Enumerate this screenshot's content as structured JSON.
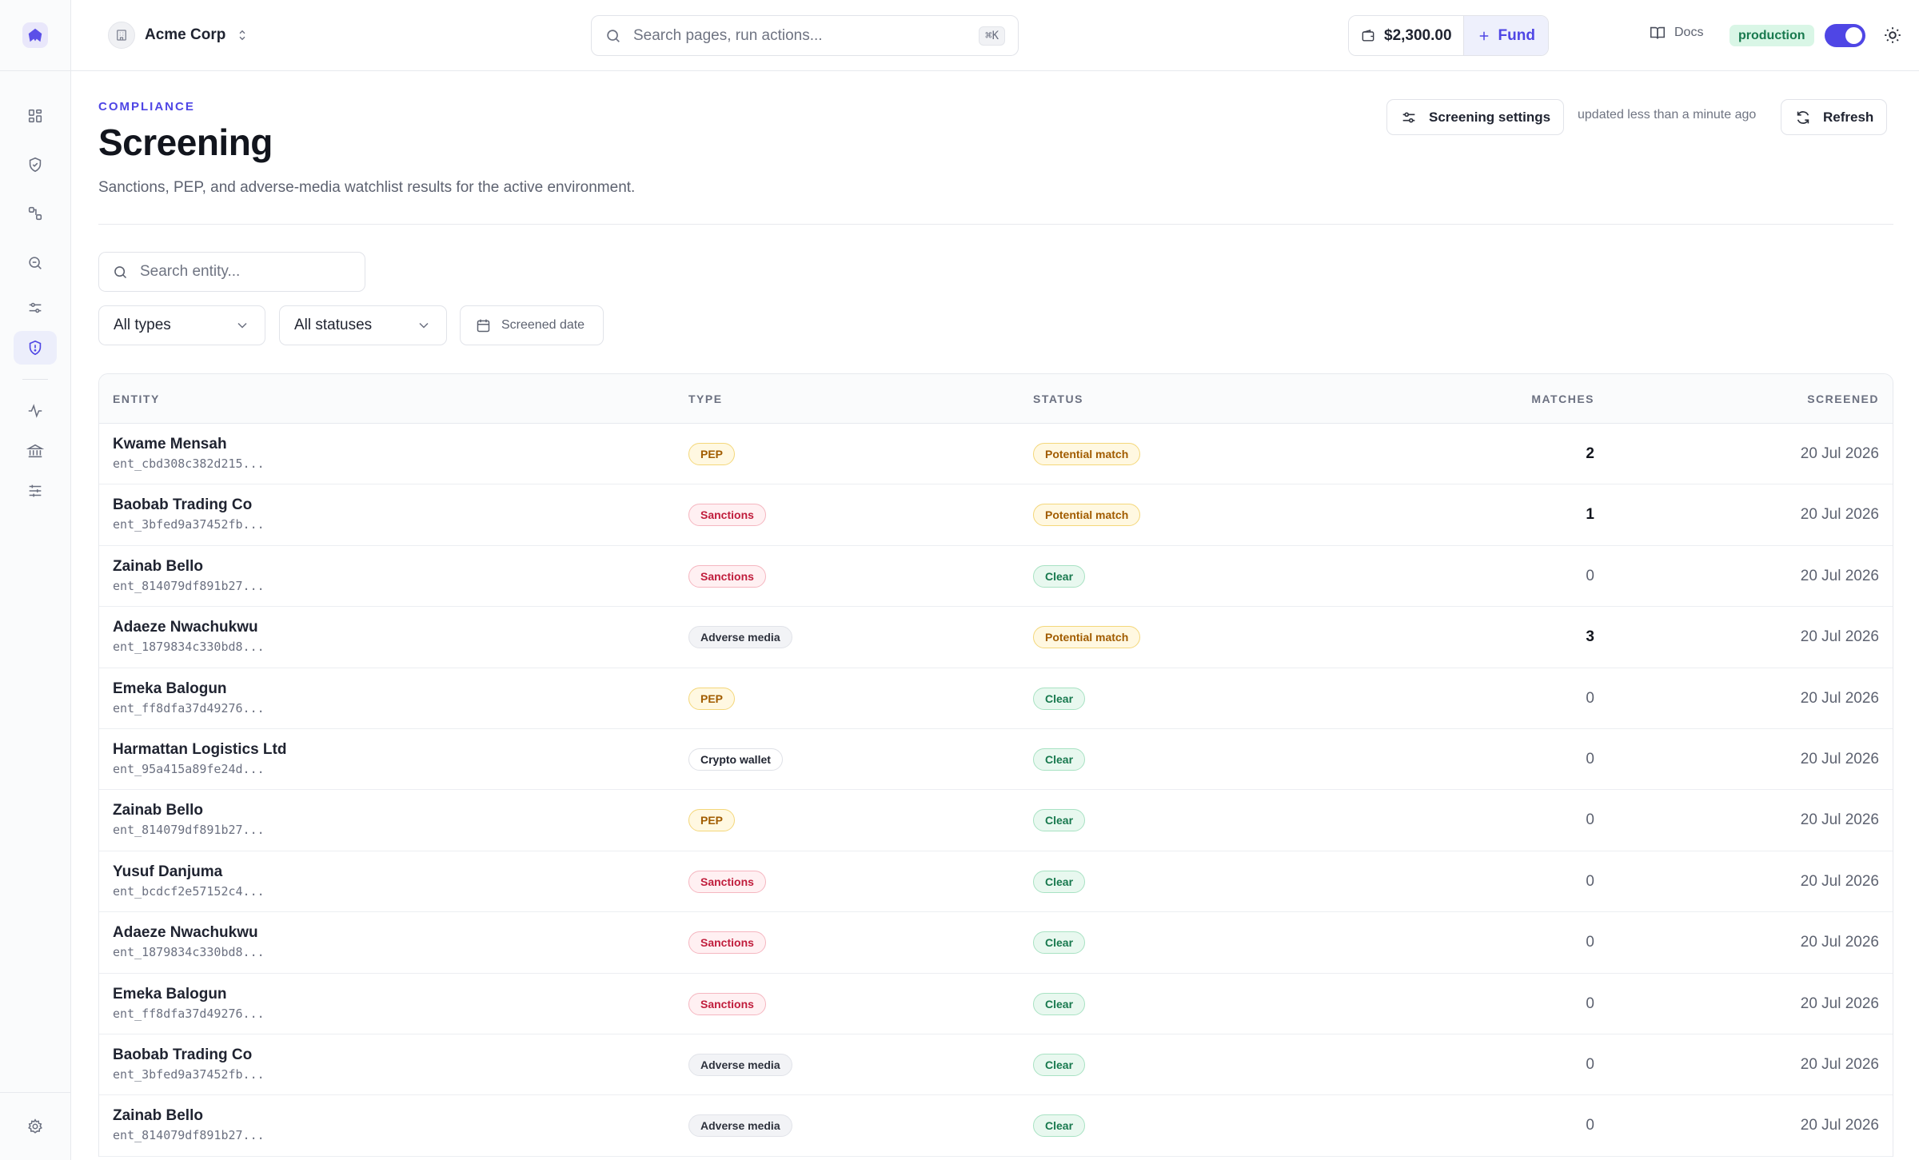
{
  "org": {
    "name": "Acme Corp"
  },
  "search": {
    "placeholder": "Search pages, run actions...",
    "shortcut": "⌘K"
  },
  "wallet": {
    "balance": "$2,300.00",
    "fund_label": "Fund"
  },
  "docs_label": "Docs",
  "environment": {
    "label": "production",
    "live_mode": true
  },
  "colors": {
    "accent": "#4f46e5",
    "success": "#18794e",
    "warning": "#a15c00",
    "danger": "#c01d3c"
  },
  "page": {
    "eyebrow": "COMPLIANCE",
    "title": "Screening",
    "subtitle": "Sanctions, PEP, and adverse-media watchlist results for the active environment.",
    "settings_label": "Screening settings",
    "updated_text": "updated less than a minute ago",
    "refresh_label": "Refresh"
  },
  "filters": {
    "entity_placeholder": "Search entity...",
    "type_value": "All types",
    "status_value": "All statuses",
    "date_label": "Screened date"
  },
  "table": {
    "headers": {
      "entity": "ENTITY",
      "type": "TYPE",
      "status": "STATUS",
      "matches": "MATCHES",
      "screened": "SCREENED"
    },
    "rows": [
      {
        "name": "Kwame Mensah",
        "id": "ent_cbd308c382d215...",
        "type": "PEP",
        "status": "Potential match",
        "matches": "2",
        "screened": "20 Jul 2026"
      },
      {
        "name": "Baobab Trading Co",
        "id": "ent_3bfed9a37452fb...",
        "type": "Sanctions",
        "status": "Potential match",
        "matches": "1",
        "screened": "20 Jul 2026"
      },
      {
        "name": "Zainab Bello",
        "id": "ent_814079df891b27...",
        "type": "Sanctions",
        "status": "Clear",
        "matches": "0",
        "screened": "20 Jul 2026"
      },
      {
        "name": "Adaeze Nwachukwu",
        "id": "ent_1879834c330bd8...",
        "type": "Adverse media",
        "status": "Potential match",
        "matches": "3",
        "screened": "20 Jul 2026"
      },
      {
        "name": "Emeka Balogun",
        "id": "ent_ff8dfa37d49276...",
        "type": "PEP",
        "status": "Clear",
        "matches": "0",
        "screened": "20 Jul 2026"
      },
      {
        "name": "Harmattan Logistics Ltd",
        "id": "ent_95a415a89fe24d...",
        "type": "Crypto wallet",
        "status": "Clear",
        "matches": "0",
        "screened": "20 Jul 2026"
      },
      {
        "name": "Zainab Bello",
        "id": "ent_814079df891b27...",
        "type": "PEP",
        "status": "Clear",
        "matches": "0",
        "screened": "20 Jul 2026"
      },
      {
        "name": "Yusuf Danjuma",
        "id": "ent_bcdcf2e57152c4...",
        "type": "Sanctions",
        "status": "Clear",
        "matches": "0",
        "screened": "20 Jul 2026"
      },
      {
        "name": "Adaeze Nwachukwu",
        "id": "ent_1879834c330bd8...",
        "type": "Sanctions",
        "status": "Clear",
        "matches": "0",
        "screened": "20 Jul 2026"
      },
      {
        "name": "Emeka Balogun",
        "id": "ent_ff8dfa37d49276...",
        "type": "Sanctions",
        "status": "Clear",
        "matches": "0",
        "screened": "20 Jul 2026"
      },
      {
        "name": "Baobab Trading Co",
        "id": "ent_3bfed9a37452fb...",
        "type": "Adverse media",
        "status": "Clear",
        "matches": "0",
        "screened": "20 Jul 2026"
      },
      {
        "name": "Zainab Bello",
        "id": "ent_814079df891b27...",
        "type": "Adverse media",
        "status": "Clear",
        "matches": "0",
        "screened": "20 Jul 2026"
      }
    ]
  },
  "sidebar": {
    "items": [
      {
        "icon": "dashboard-icon"
      },
      {
        "icon": "shield-check-icon"
      },
      {
        "icon": "flow-icon"
      },
      {
        "icon": "search-zoom-icon"
      },
      {
        "icon": "sliders-icon"
      },
      {
        "icon": "shield-alert-icon",
        "active": true
      },
      {
        "icon": "activity-icon"
      },
      {
        "icon": "bank-icon"
      },
      {
        "icon": "adjustments-icon"
      },
      {
        "icon": "gear-icon"
      }
    ]
  }
}
